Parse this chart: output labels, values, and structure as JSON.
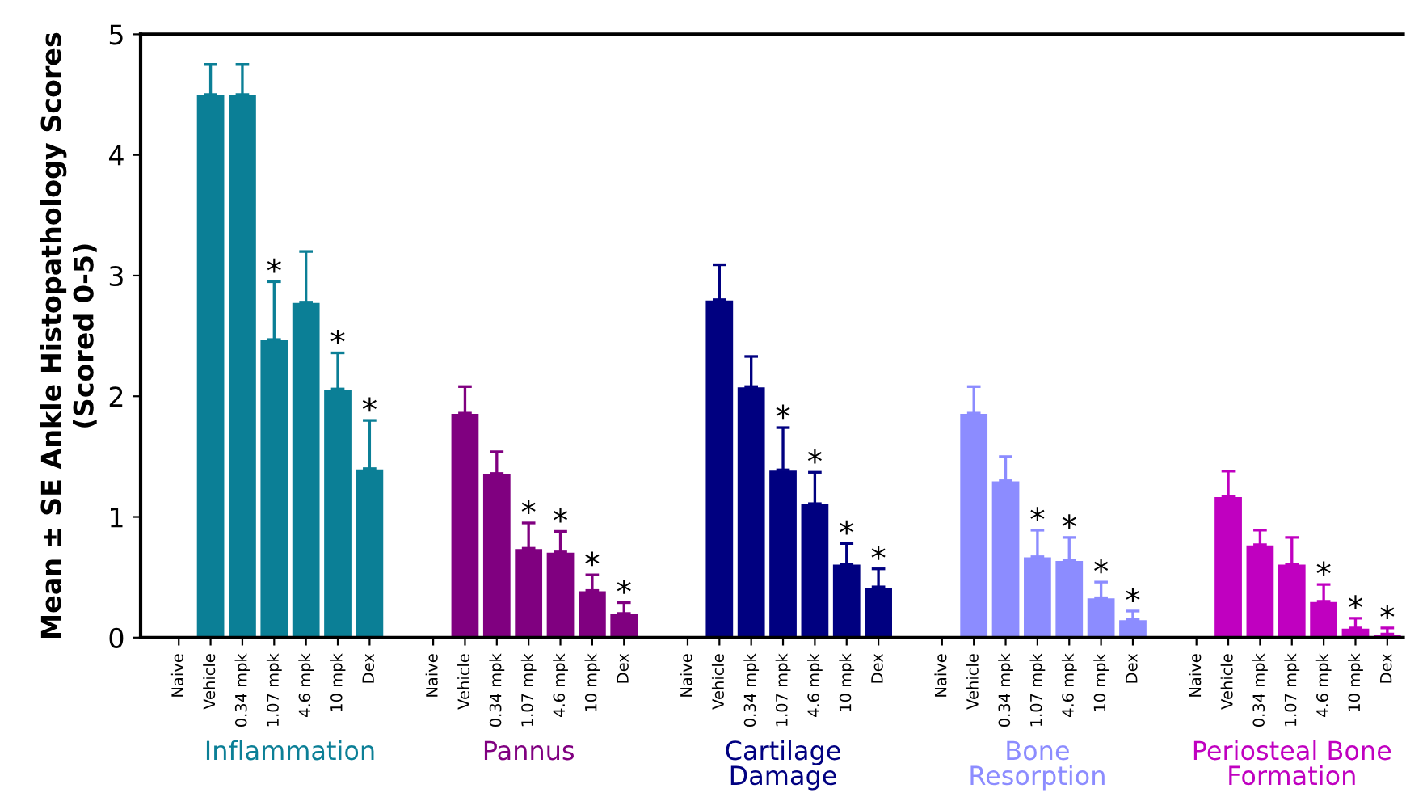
{
  "chart_data": {
    "type": "bar",
    "ylabel": "Mean ± SE Ankle Histopathology Scores\n(Scored 0-5)",
    "categories": [
      "Naive",
      "Vehicle",
      "0.34 mpk",
      "1.07 mpk",
      "4.6 mpk",
      "10 mpk",
      "Dex",
      null,
      "Naive",
      "Vehicle",
      "0.34 mpk",
      "1.07 mpk",
      "4.6 mpk",
      "10 mpk",
      "Dex",
      null,
      "Naive",
      "Vehicle",
      "0.34 mpk",
      "1.07 mpk",
      "4.6 mpk",
      "10 mpk",
      "Dex",
      null,
      "Naive",
      "Vehicle",
      "0.34 mpk",
      "1.07 mpk",
      "4.6 mpk",
      "10 mpk",
      "Dex",
      null,
      "Naive",
      "Vehicle",
      "0.34 mpk",
      "1.07 mpk",
      "4.6 mpk",
      "10 mpk",
      "Dex"
    ],
    "ylim": [
      0,
      5
    ],
    "yticks": [
      0,
      1,
      2,
      3,
      4,
      5
    ],
    "grid": false,
    "legend": false,
    "series": [
      {
        "name": "Inflammation",
        "color": "#0b7f96",
        "values": [
          null,
          4.5,
          4.5,
          2.47,
          2.78,
          2.06,
          1.4,
          null,
          null,
          null,
          null,
          null,
          null,
          null,
          null,
          null,
          null,
          null,
          null,
          null,
          null,
          null,
          null,
          null,
          null,
          null,
          null,
          null,
          null,
          null,
          null,
          null,
          null,
          null,
          null,
          null,
          null,
          null,
          null
        ],
        "errors": [
          null,
          [
            4.5,
            4.75
          ],
          [
            4.5,
            4.75
          ],
          [
            2.47,
            2.95
          ],
          [
            2.78,
            3.2
          ],
          [
            2.06,
            2.36
          ],
          [
            1.4,
            1.8
          ],
          null,
          null,
          null,
          null,
          null,
          null,
          null,
          null,
          null,
          null,
          null,
          null,
          null,
          null,
          null,
          null,
          null,
          null,
          null,
          null,
          null,
          null,
          null,
          null,
          null,
          null,
          null,
          null,
          null,
          null,
          null,
          null
        ],
        "value_labels": [
          null,
          null,
          null,
          "*",
          null,
          "*",
          "*",
          null,
          null,
          null,
          null,
          null,
          null,
          null,
          null,
          null,
          null,
          null,
          null,
          null,
          null,
          null,
          null,
          null,
          null,
          null,
          null,
          null,
          null,
          null,
          null,
          null,
          null,
          null,
          null,
          null,
          null,
          null,
          null
        ]
      },
      {
        "name": "Pannus",
        "color": "#800080",
        "values": [
          null,
          null,
          null,
          null,
          null,
          null,
          null,
          null,
          null,
          1.86,
          1.36,
          0.74,
          0.71,
          0.39,
          0.2,
          null,
          null,
          null,
          null,
          null,
          null,
          null,
          null,
          null,
          null,
          null,
          null,
          null,
          null,
          null,
          null,
          null,
          null,
          null,
          null,
          null,
          null,
          null,
          null
        ],
        "errors": [
          null,
          null,
          null,
          null,
          null,
          null,
          null,
          null,
          null,
          [
            1.86,
            2.08
          ],
          [
            1.36,
            1.54
          ],
          [
            0.74,
            0.95
          ],
          [
            0.71,
            0.88
          ],
          [
            0.39,
            0.52
          ],
          [
            0.2,
            0.29
          ],
          null,
          null,
          null,
          null,
          null,
          null,
          null,
          null,
          null,
          null,
          null,
          null,
          null,
          null,
          null,
          null,
          null,
          null,
          null,
          null,
          null,
          null,
          null,
          null
        ],
        "value_labels": [
          null,
          null,
          null,
          null,
          null,
          null,
          null,
          null,
          null,
          null,
          null,
          "*",
          "*",
          "*",
          "*",
          null,
          null,
          null,
          null,
          null,
          null,
          null,
          null,
          null,
          null,
          null,
          null,
          null,
          null,
          null,
          null,
          null,
          null,
          null,
          null,
          null,
          null,
          null,
          null
        ]
      },
      {
        "name": "Cartilage\nDamage",
        "color": "#000080",
        "values": [
          null,
          null,
          null,
          null,
          null,
          null,
          null,
          null,
          null,
          null,
          null,
          null,
          null,
          null,
          null,
          null,
          null,
          2.8,
          2.08,
          1.39,
          1.11,
          0.61,
          0.42,
          null,
          null,
          null,
          null,
          null,
          null,
          null,
          null,
          null,
          null,
          null,
          null,
          null,
          null,
          null,
          null
        ],
        "errors": [
          null,
          null,
          null,
          null,
          null,
          null,
          null,
          null,
          null,
          null,
          null,
          null,
          null,
          null,
          null,
          null,
          null,
          [
            2.8,
            3.09
          ],
          [
            2.08,
            2.33
          ],
          [
            1.39,
            1.74
          ],
          [
            1.11,
            1.37
          ],
          [
            0.61,
            0.78
          ],
          [
            0.42,
            0.57
          ],
          null,
          null,
          null,
          null,
          null,
          null,
          null,
          null,
          null,
          null,
          null,
          null,
          null,
          null,
          null,
          null
        ],
        "value_labels": [
          null,
          null,
          null,
          null,
          null,
          null,
          null,
          null,
          null,
          null,
          null,
          null,
          null,
          null,
          null,
          null,
          null,
          null,
          null,
          "*",
          "*",
          "*",
          "*",
          null,
          null,
          null,
          null,
          null,
          null,
          null,
          null,
          null,
          null,
          null,
          null,
          null,
          null,
          null,
          null
        ]
      },
      {
        "name": "Bone\nResorption",
        "color": "#8c8cff",
        "values": [
          null,
          null,
          null,
          null,
          null,
          null,
          null,
          null,
          null,
          null,
          null,
          null,
          null,
          null,
          null,
          null,
          null,
          null,
          null,
          null,
          null,
          null,
          null,
          null,
          null,
          1.86,
          1.3,
          0.67,
          0.64,
          0.33,
          0.15,
          null,
          null,
          null,
          null,
          null,
          null,
          null,
          null
        ],
        "errors": [
          null,
          null,
          null,
          null,
          null,
          null,
          null,
          null,
          null,
          null,
          null,
          null,
          null,
          null,
          null,
          null,
          null,
          null,
          null,
          null,
          null,
          null,
          null,
          null,
          null,
          [
            1.86,
            2.08
          ],
          [
            1.3,
            1.5
          ],
          [
            0.67,
            0.89
          ],
          [
            0.64,
            0.83
          ],
          [
            0.33,
            0.46
          ],
          [
            0.15,
            0.22
          ],
          null,
          null,
          null,
          null,
          null,
          null,
          null,
          null
        ],
        "value_labels": [
          null,
          null,
          null,
          null,
          null,
          null,
          null,
          null,
          null,
          null,
          null,
          null,
          null,
          null,
          null,
          null,
          null,
          null,
          null,
          null,
          null,
          null,
          null,
          null,
          null,
          null,
          null,
          "*",
          "*",
          "*",
          "*",
          null,
          null,
          null,
          null,
          null,
          null,
          null,
          null
        ]
      },
      {
        "name": "Periosteal Bone\nFormation",
        "color": "#c000c0",
        "values": [
          null,
          null,
          null,
          null,
          null,
          null,
          null,
          null,
          null,
          null,
          null,
          null,
          null,
          null,
          null,
          null,
          null,
          null,
          null,
          null,
          null,
          null,
          null,
          null,
          null,
          null,
          null,
          null,
          null,
          null,
          null,
          null,
          null,
          1.17,
          0.77,
          0.61,
          0.3,
          0.08,
          0.03
        ],
        "errors": [
          null,
          null,
          null,
          null,
          null,
          null,
          null,
          null,
          null,
          null,
          null,
          null,
          null,
          null,
          null,
          null,
          null,
          null,
          null,
          null,
          null,
          null,
          null,
          null,
          null,
          null,
          null,
          null,
          null,
          null,
          null,
          null,
          null,
          [
            1.17,
            1.38
          ],
          [
            0.77,
            0.89
          ],
          [
            0.61,
            0.83
          ],
          [
            0.3,
            0.44
          ],
          [
            0.08,
            0.16
          ],
          [
            0.03,
            0.08
          ]
        ],
        "value_labels": [
          null,
          null,
          null,
          null,
          null,
          null,
          null,
          null,
          null,
          null,
          null,
          null,
          null,
          null,
          null,
          null,
          null,
          null,
          null,
          null,
          null,
          null,
          null,
          null,
          null,
          null,
          null,
          null,
          null,
          null,
          null,
          null,
          null,
          null,
          null,
          null,
          "*",
          "*",
          "*"
        ]
      }
    ]
  }
}
